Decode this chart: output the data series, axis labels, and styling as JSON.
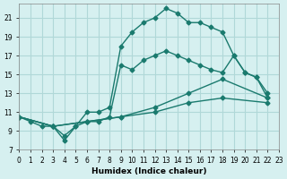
{
  "xlabel": "Humidex (Indice chaleur)",
  "ylabel": "",
  "xlim": [
    0,
    23
  ],
  "ylim": [
    7,
    22.5
  ],
  "yticks": [
    7,
    9,
    11,
    13,
    15,
    17,
    19,
    21
  ],
  "xticks": [
    0,
    1,
    2,
    3,
    4,
    5,
    6,
    7,
    8,
    9,
    10,
    11,
    12,
    13,
    14,
    15,
    16,
    17,
    18,
    19,
    20,
    21,
    22,
    23
  ],
  "background_color": "#d6f0f0",
  "grid_color": "#b0d8d8",
  "line_color": "#1a7a6e",
  "lines": [
    {
      "x": [
        0,
        1,
        2,
        3,
        4,
        5,
        6,
        7,
        8,
        9,
        10,
        11,
        12,
        13,
        14,
        15,
        16,
        17,
        18,
        19,
        20,
        21,
        22
      ],
      "y": [
        10.5,
        10.0,
        9.5,
        9.5,
        8.0,
        9.5,
        11.0,
        11.0,
        11.5,
        18.0,
        19.5,
        20.5,
        21.0,
        22.0,
        21.5,
        20.5,
        20.5,
        20.0,
        19.5,
        17.0,
        15.2,
        14.7,
        13.0
      ]
    },
    {
      "x": [
        0,
        3,
        4,
        5,
        6,
        7,
        8,
        9,
        10,
        11,
        12,
        13,
        14,
        15,
        16,
        17,
        18,
        19,
        20,
        21,
        22
      ],
      "y": [
        10.5,
        9.5,
        8.5,
        9.5,
        10.0,
        10.0,
        10.5,
        16.0,
        15.5,
        16.5,
        17.0,
        17.5,
        17.0,
        16.5,
        16.0,
        15.5,
        15.2,
        17.0,
        15.2,
        14.7,
        12.5
      ]
    },
    {
      "x": [
        0,
        3,
        6,
        9,
        12,
        15,
        18,
        22
      ],
      "y": [
        10.5,
        9.5,
        10.0,
        10.5,
        11.5,
        13.0,
        14.5,
        12.5
      ]
    },
    {
      "x": [
        0,
        3,
        6,
        9,
        12,
        15,
        18,
        22
      ],
      "y": [
        10.5,
        9.5,
        10.0,
        10.5,
        11.0,
        12.0,
        12.5,
        12.0
      ]
    }
  ]
}
